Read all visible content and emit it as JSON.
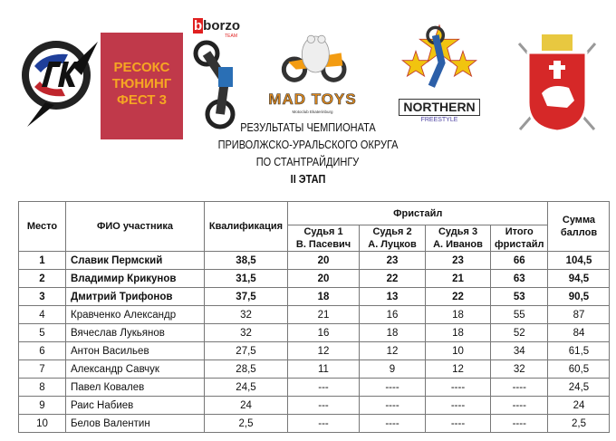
{
  "logos": {
    "resox": [
      "РЕСОКС",
      "ТЮНИНГ",
      "ФЕСТ 3"
    ],
    "borzo": "borzo",
    "borzo_sub": "TEAM",
    "madtoys": "MAD TOYS",
    "madtoys_sub": "Motoclub Ekaterinburg",
    "northern": "NORTHERN",
    "northern_sub": "FREESTYLE",
    "resox_color": "#c0392b",
    "resox_text_color": "#f5a623"
  },
  "title": {
    "line1": "РЕЗУЛЬТАТЫ ЧЕМПИОНАТА",
    "line2": "ПРИВОЛЖСКО-УРАЛЬСКОГО ОКРУГА",
    "line3": "ПО СТАНТРАЙДИНГУ",
    "stage": "II ЭТАП"
  },
  "table": {
    "headers": {
      "place": "Место",
      "name": "ФИО участника",
      "qualification": "Квалификация",
      "freestyle": "Фристайл",
      "judge1": [
        "Судья 1",
        "В. Пасевич"
      ],
      "judge2": [
        "Судья 2",
        "А. Луцков"
      ],
      "judge3": [
        "Судья 3",
        "А. Иванов"
      ],
      "total_freestyle": [
        "Итого",
        "фристайл"
      ],
      "sum": [
        "Сумма",
        "баллов"
      ]
    },
    "rows": [
      [
        "1",
        "Славик Пермский",
        "38,5",
        "20",
        "23",
        "23",
        "66",
        "104,5"
      ],
      [
        "2",
        "Владимир Крикунов",
        "31,5",
        "20",
        "22",
        "21",
        "63",
        "94,5"
      ],
      [
        "3",
        "Дмитрий Трифонов",
        "37,5",
        "18",
        "13",
        "22",
        "53",
        "90,5"
      ],
      [
        "4",
        "Кравченко Александр",
        "32",
        "21",
        "16",
        "18",
        "55",
        "87"
      ],
      [
        "5",
        "Вячеслав Лукьянов",
        "32",
        "16",
        "18",
        "18",
        "52",
        "84"
      ],
      [
        "6",
        "Антон Васильев",
        "27,5",
        "12",
        "12",
        "10",
        "34",
        "61,5"
      ],
      [
        "7",
        "Александр Савчук",
        "28,5",
        "11",
        "9",
        "12",
        "32",
        "60,5"
      ],
      [
        "8",
        "Павел Ковалев",
        "24,5",
        "---",
        "----",
        "----",
        "----",
        "24,5"
      ],
      [
        "9",
        "Раис Набиев",
        "24",
        "---",
        "----",
        "----",
        "----",
        "24"
      ],
      [
        "10",
        "Белов Валентин",
        "2,5",
        "---",
        "----",
        "----",
        "----",
        "2,5"
      ]
    ]
  }
}
